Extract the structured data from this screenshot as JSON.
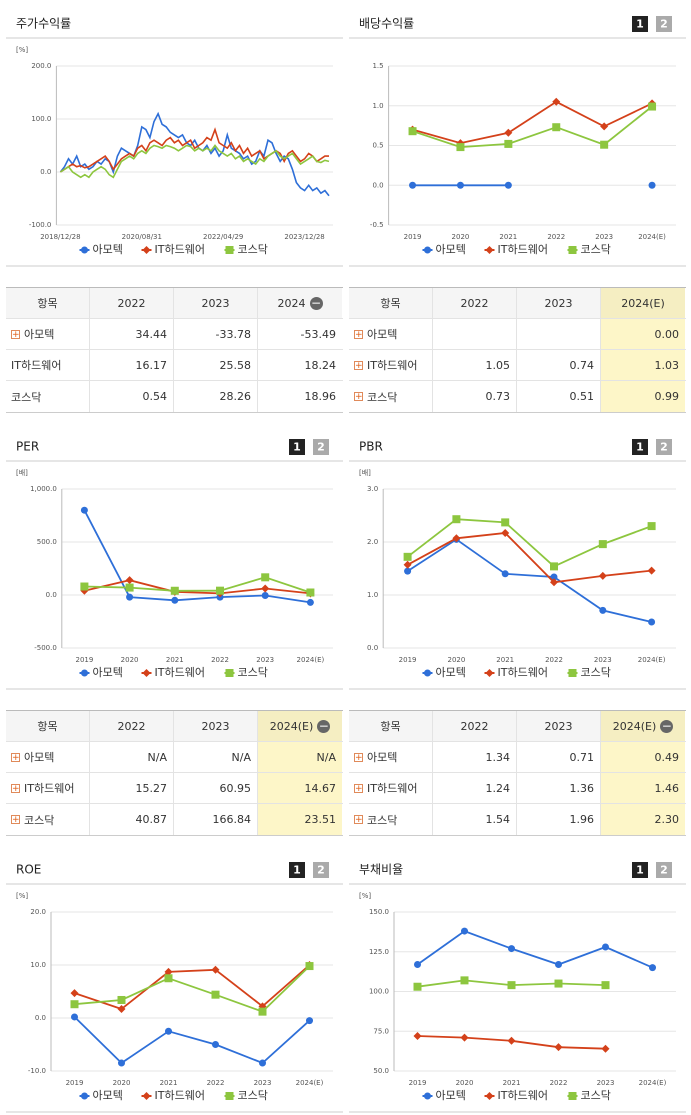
{
  "chart_data": [
    {
      "type": "line",
      "title": "주가수익률",
      "unit": "[%]",
      "categories": [
        "2018/12/28",
        null,
        null,
        null,
        null,
        null,
        null,
        null,
        null,
        null,
        null,
        null,
        null,
        null,
        null,
        null,
        null,
        null,
        null,
        null,
        "2020/08/31",
        null,
        null,
        null,
        null,
        null,
        null,
        null,
        null,
        null,
        null,
        null,
        null,
        null,
        null,
        null,
        null,
        null,
        null,
        null,
        "2022/04/29",
        null,
        null,
        null,
        null,
        null,
        null,
        null,
        null,
        null,
        null,
        null,
        null,
        null,
        null,
        null,
        null,
        null,
        null,
        null,
        "2023/12/28",
        null,
        null,
        null,
        null,
        null,
        null
      ],
      "series": [
        {
          "name": "아모텍",
          "color": "#2e6fd8",
          "values": [
            0,
            10,
            25,
            15,
            30,
            10,
            15,
            5,
            10,
            20,
            15,
            25,
            20,
            0,
            30,
            45,
            40,
            35,
            30,
            50,
            85,
            80,
            65,
            95,
            110,
            90,
            85,
            75,
            70,
            65,
            70,
            55,
            50,
            60,
            45,
            40,
            50,
            35,
            45,
            30,
            40,
            70,
            45,
            40,
            35,
            25,
            30,
            15,
            20,
            40,
            30,
            60,
            55,
            35,
            20,
            30,
            25,
            5,
            -20,
            -30,
            -35,
            -25,
            -35,
            -30,
            -40,
            -35,
            -45
          ]
        },
        {
          "name": "IT하드웨어",
          "color": "#d4411a",
          "values": [
            0,
            5,
            10,
            15,
            10,
            12,
            8,
            10,
            15,
            20,
            25,
            30,
            20,
            5,
            15,
            25,
            30,
            35,
            30,
            45,
            50,
            40,
            55,
            60,
            55,
            50,
            60,
            65,
            55,
            60,
            50,
            55,
            60,
            45,
            50,
            55,
            65,
            60,
            80,
            55,
            50,
            45,
            55,
            40,
            50,
            35,
            45,
            30,
            35,
            40,
            25,
            30,
            35,
            40,
            35,
            20,
            35,
            40,
            30,
            20,
            25,
            35,
            30,
            20,
            25,
            30,
            30
          ]
        },
        {
          "name": "코스닥",
          "color": "#8dc63f",
          "values": [
            0,
            5,
            10,
            0,
            -5,
            -10,
            -5,
            -10,
            0,
            5,
            10,
            5,
            -5,
            -10,
            5,
            20,
            25,
            30,
            25,
            35,
            40,
            35,
            45,
            50,
            48,
            45,
            50,
            48,
            45,
            40,
            45,
            50,
            48,
            40,
            45,
            40,
            45,
            40,
            50,
            40,
            35,
            30,
            35,
            25,
            30,
            20,
            25,
            20,
            15,
            25,
            20,
            30,
            35,
            40,
            30,
            25,
            30,
            35,
            25,
            15,
            20,
            25,
            30,
            20,
            18,
            22,
            20
          ]
        }
      ],
      "ylim": [
        -100,
        200
      ],
      "yticks": [
        {
          "value": -100,
          "label": "-100.0"
        },
        {
          "value": 0,
          "label": "0.0"
        },
        {
          "value": 100,
          "label": "100.0"
        },
        {
          "value": 200,
          "label": "200.0"
        }
      ],
      "grid": true
    },
    {
      "type": "line",
      "title": "배당수익률",
      "unit": null,
      "buttons": [
        "1",
        "2"
      ],
      "categories": [
        "2019",
        "2020",
        "2021",
        "2022",
        "2023",
        "2024(E)"
      ],
      "series": [
        {
          "name": "아모텍",
          "color": "#2e6fd8",
          "values": [
            0,
            0,
            0,
            null,
            null,
            0
          ]
        },
        {
          "name": "IT하드웨어",
          "color": "#d4411a",
          "values": [
            0.7,
            0.53,
            0.66,
            1.05,
            0.74,
            1.03
          ]
        },
        {
          "name": "코스닥",
          "color": "#8dc63f",
          "values": [
            0.68,
            0.48,
            0.52,
            0.73,
            0.51,
            0.99
          ]
        }
      ],
      "ylim": [
        -0.5,
        1.5
      ],
      "yticks": [
        -0.5,
        {
          "value": 0,
          "label": "0.0"
        },
        0.5,
        {
          "value": 1,
          "label": "1.0"
        },
        1.5
      ],
      "grid": true
    },
    {
      "type": "line",
      "title": "PER",
      "unit": "[배]",
      "buttons": [
        "1",
        "2"
      ],
      "categories": [
        "2019",
        "2020",
        "2021",
        "2022",
        "2023",
        "2024(E)"
      ],
      "series": [
        {
          "name": "아모텍",
          "color": "#2e6fd8",
          "values": [
            800,
            -20,
            -50,
            -20,
            -5,
            -70
          ]
        },
        {
          "name": "IT하드웨어",
          "color": "#d4411a",
          "values": [
            40,
            140,
            30,
            15.27,
            60.95,
            14.67
          ]
        },
        {
          "name": "코스닥",
          "color": "#8dc63f",
          "values": [
            80,
            70,
            40,
            40.87,
            166.84,
            23.51
          ]
        }
      ],
      "ylim": [
        -500,
        1000
      ],
      "yticks": [
        {
          "value": -500,
          "label": "-500.0"
        },
        {
          "value": 0,
          "label": "0.0"
        },
        {
          "value": 500,
          "label": "500.0"
        },
        {
          "value": 1000,
          "label": "1,000.0"
        }
      ],
      "grid": true
    },
    {
      "type": "line",
      "title": "PBR",
      "unit": "[배]",
      "buttons": [
        "1",
        "2"
      ],
      "categories": [
        "2019",
        "2020",
        "2021",
        "2022",
        "2023",
        "2024(E)"
      ],
      "series": [
        {
          "name": "아모텍",
          "color": "#2e6fd8",
          "values": [
            1.45,
            2.05,
            1.4,
            1.34,
            0.71,
            0.49
          ]
        },
        {
          "name": "IT하드웨어",
          "color": "#d4411a",
          "values": [
            1.57,
            2.07,
            2.17,
            1.24,
            1.36,
            1.46
          ]
        },
        {
          "name": "코스닥",
          "color": "#8dc63f",
          "values": [
            1.72,
            2.43,
            2.37,
            1.54,
            1.96,
            2.3
          ]
        }
      ],
      "ylim": [
        0,
        3
      ],
      "yticks": [
        {
          "value": 0,
          "label": "0.0"
        },
        {
          "value": 1,
          "label": "1.0"
        },
        {
          "value": 2,
          "label": "2.0"
        },
        {
          "value": 3,
          "label": "3.0"
        }
      ],
      "grid": true
    },
    {
      "type": "line",
      "title": "ROE",
      "unit": "[%]",
      "buttons": [
        "1",
        "2"
      ],
      "categories": [
        "2019",
        "2020",
        "2021",
        "2022",
        "2023",
        "2024(E)"
      ],
      "series": [
        {
          "name": "아모텍",
          "color": "#2e6fd8",
          "values": [
            0.2,
            -8.5,
            -2.5,
            -5,
            -8.5,
            -0.5
          ]
        },
        {
          "name": "IT하드웨어",
          "color": "#d4411a",
          "values": [
            4.7,
            1.7,
            8.7,
            9.1,
            2.2,
            10.0
          ]
        },
        {
          "name": "코스닥",
          "color": "#8dc63f",
          "values": [
            2.6,
            3.4,
            7.5,
            4.4,
            1.2,
            9.8
          ]
        }
      ],
      "ylim": [
        -10,
        20
      ],
      "yticks": [
        {
          "value": -10,
          "label": "-10.0"
        },
        {
          "value": 0,
          "label": "0.0"
        },
        {
          "value": 10,
          "label": "10.0"
        },
        {
          "value": 20,
          "label": "20.0"
        }
      ],
      "grid": true
    },
    {
      "type": "line",
      "title": "부채비율",
      "unit": "[%]",
      "buttons": [
        "1",
        "2"
      ],
      "categories": [
        "2019",
        "2020",
        "2021",
        "2022",
        "2023",
        "2024(E)"
      ],
      "series": [
        {
          "name": "아모텍",
          "color": "#2e6fd8",
          "values": [
            117,
            138,
            127,
            117,
            128,
            115
          ]
        },
        {
          "name": "IT하드웨어",
          "color": "#d4411a",
          "values": [
            72,
            71,
            69,
            65,
            64,
            null
          ]
        },
        {
          "name": "코스닥",
          "color": "#8dc63f",
          "values": [
            103,
            107,
            104,
            105,
            104,
            null
          ]
        }
      ],
      "ylim": [
        50,
        150
      ],
      "yticks": [
        {
          "value": 50,
          "label": "50.0"
        },
        {
          "value": 75,
          "label": "75.0"
        },
        {
          "value": 100,
          "label": "100.0"
        },
        {
          "value": 125,
          "label": "125.0"
        },
        {
          "value": 150,
          "label": "150.0"
        }
      ],
      "grid": true
    }
  ],
  "tables": [
    {
      "header": [
        "항목",
        "2022",
        "2023",
        "2024"
      ],
      "expand_icons": [
        true,
        false,
        false
      ],
      "collapse_icon": true,
      "highlight_last": false,
      "rows": [
        [
          "아모텍",
          "34.44",
          "-33.78",
          "-53.49"
        ],
        [
          "IT하드웨어",
          "16.17",
          "25.58",
          "18.24"
        ],
        [
          "코스닥",
          "0.54",
          "28.26",
          "18.96"
        ]
      ]
    },
    {
      "header": [
        "항목",
        "2022",
        "2023",
        "2024(E)"
      ],
      "expand_icons": [
        true,
        true,
        true
      ],
      "collapse_icon": false,
      "highlight_last": true,
      "rows": [
        [
          "아모텍",
          null,
          null,
          "0.00"
        ],
        [
          "IT하드웨어",
          "1.05",
          "0.74",
          "1.03"
        ],
        [
          "코스닥",
          "0.73",
          "0.51",
          "0.99"
        ]
      ]
    },
    {
      "header": [
        "항목",
        "2022",
        "2023",
        "2024(E)"
      ],
      "expand_icons": [
        true,
        true,
        true
      ],
      "collapse_icon": true,
      "highlight_last": true,
      "rows": [
        [
          "아모텍",
          "N/A",
          "N/A",
          "N/A"
        ],
        [
          "IT하드웨어",
          "15.27",
          "60.95",
          "14.67"
        ],
        [
          "코스닥",
          "40.87",
          "166.84",
          "23.51"
        ]
      ]
    },
    {
      "header": [
        "항목",
        "2022",
        "2023",
        "2024(E)"
      ],
      "expand_icons": [
        true,
        true,
        true
      ],
      "collapse_icon": true,
      "highlight_last": true,
      "rows": [
        [
          "아모텍",
          "1.34",
          "0.71",
          "0.49"
        ],
        [
          "IT하드웨어",
          "1.24",
          "1.36",
          "1.46"
        ],
        [
          "코스닥",
          "1.54",
          "1.96",
          "2.30"
        ]
      ]
    }
  ]
}
